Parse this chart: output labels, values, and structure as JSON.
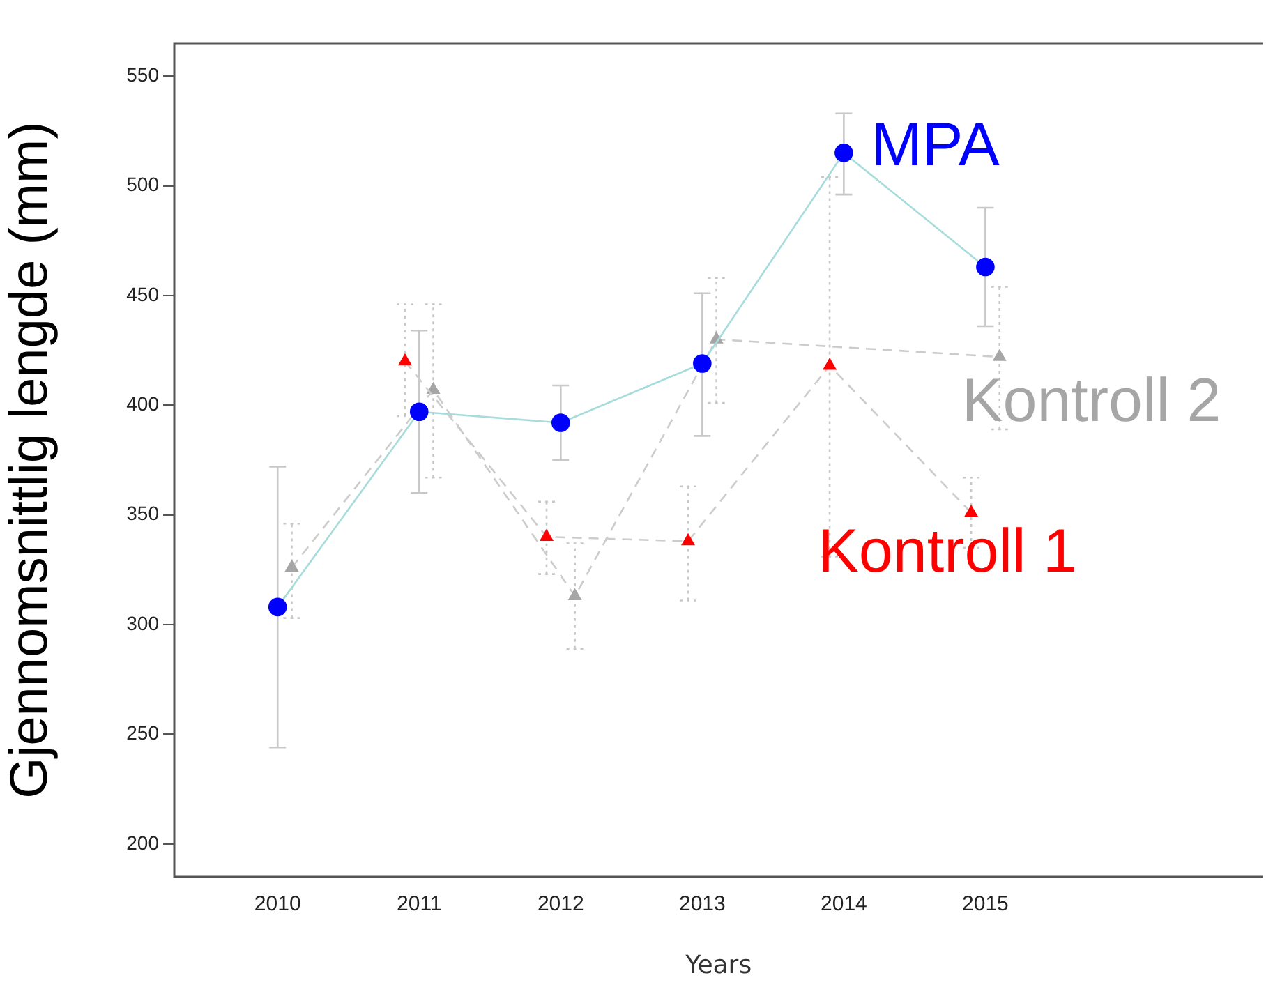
{
  "chart_data": {
    "type": "line",
    "xlabel": "Years",
    "ylabel": "Gjennomsnittlig lengde (mm)",
    "x": [
      2010,
      2011,
      2012,
      2013,
      2014,
      2015
    ],
    "xlim": [
      2009.27,
      2016.96
    ],
    "xticks": [
      2010,
      2011,
      2012,
      2013,
      2014,
      2015
    ],
    "ylim": [
      185,
      565
    ],
    "yticks": [
      200,
      250,
      300,
      350,
      400,
      450,
      500,
      550
    ],
    "grid": false,
    "legend": false,
    "series": [
      {
        "name": "MPA",
        "color": "#0000ff",
        "marker": "circle",
        "line_style": "solid",
        "values": [
          308,
          397,
          392,
          419,
          515,
          463
        ],
        "errors": [
          [
            244,
            372
          ],
          [
            360,
            434
          ],
          [
            375,
            409
          ],
          [
            386,
            451
          ],
          [
            496,
            533
          ],
          [
            436,
            490
          ]
        ]
      },
      {
        "name": "Kontroll 1",
        "color": "#ff0000",
        "marker": "triangle",
        "line_style": "dashed",
        "x": [
          2010.9,
          2011.9,
          2012.9,
          2013.9,
          2014.9
        ],
        "values": [
          420,
          340,
          338,
          418,
          351
        ],
        "errors": [
          [
            395,
            446
          ],
          [
            323,
            356
          ],
          [
            311,
            363
          ],
          [
            331,
            504
          ],
          [
            335,
            367
          ]
        ]
      },
      {
        "name": "Kontroll 2",
        "color": "#a6a6a6",
        "marker": "triangle",
        "line_style": "dashed",
        "x": [
          2010.1,
          2011.1,
          2012.1,
          2013.1,
          2014.1,
          2015.1
        ],
        "values": [
          326,
          407,
          313,
          430,
          null,
          422
        ],
        "errors": [
          [
            303,
            346
          ],
          [
            367,
            446
          ],
          [
            289,
            337
          ],
          [
            401,
            458
          ],
          null,
          [
            389,
            454
          ]
        ]
      }
    ]
  }
}
